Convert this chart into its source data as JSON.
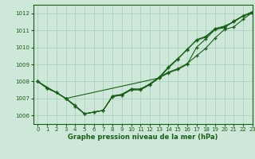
{
  "xlabel": "Graphe pression niveau de la mer (hPa)",
  "xlim": [
    -0.5,
    23
  ],
  "ylim": [
    1005.5,
    1012.5
  ],
  "yticks": [
    1006,
    1007,
    1008,
    1009,
    1010,
    1011,
    1012
  ],
  "xticks": [
    0,
    1,
    2,
    3,
    4,
    5,
    6,
    7,
    8,
    9,
    10,
    11,
    12,
    13,
    14,
    15,
    16,
    17,
    18,
    19,
    20,
    21,
    22,
    23
  ],
  "background_color": "#cde8d8",
  "grid_color": "#a8ccb8",
  "line_color": "#1a5c1a",
  "line1_y": [
    1008.0,
    1007.6,
    1007.35,
    1007.0,
    1006.55,
    1006.1,
    1006.2,
    1006.3,
    1007.15,
    1007.2,
    1007.55,
    1007.55,
    1007.85,
    1008.25,
    1008.55,
    1008.75,
    1009.05,
    1009.5,
    1009.95,
    1010.55,
    1011.05,
    1011.2,
    1011.65,
    1012.05
  ],
  "line2_y": [
    1008.0,
    1007.6,
    1007.35,
    1007.0,
    1006.55,
    1006.1,
    1006.2,
    1006.3,
    1007.15,
    1007.25,
    1007.55,
    1007.55,
    1007.85,
    1008.25,
    1008.85,
    1009.35,
    1009.85,
    1010.45,
    1010.65,
    1011.1,
    1011.25,
    1011.5,
    1011.85,
    1012.05
  ],
  "line3_y": [
    1008.0,
    1007.6,
    1007.35,
    1007.0,
    1006.6,
    1006.1,
    1006.2,
    1006.3,
    1007.1,
    1007.2,
    1007.5,
    1007.5,
    1007.8,
    1008.2,
    1008.8,
    1009.3,
    1009.9,
    1010.4,
    1010.6,
    1011.1,
    1011.2,
    1011.5,
    1011.85,
    1012.0
  ],
  "line4_x": [
    0,
    3,
    13,
    14,
    15,
    16,
    17,
    18,
    19,
    20,
    21,
    22,
    23
  ],
  "line4_y": [
    1008.0,
    1007.0,
    1008.2,
    1008.5,
    1008.7,
    1009.0,
    1010.0,
    1010.5,
    1011.05,
    1011.15,
    1011.55,
    1011.85,
    1012.1
  ]
}
